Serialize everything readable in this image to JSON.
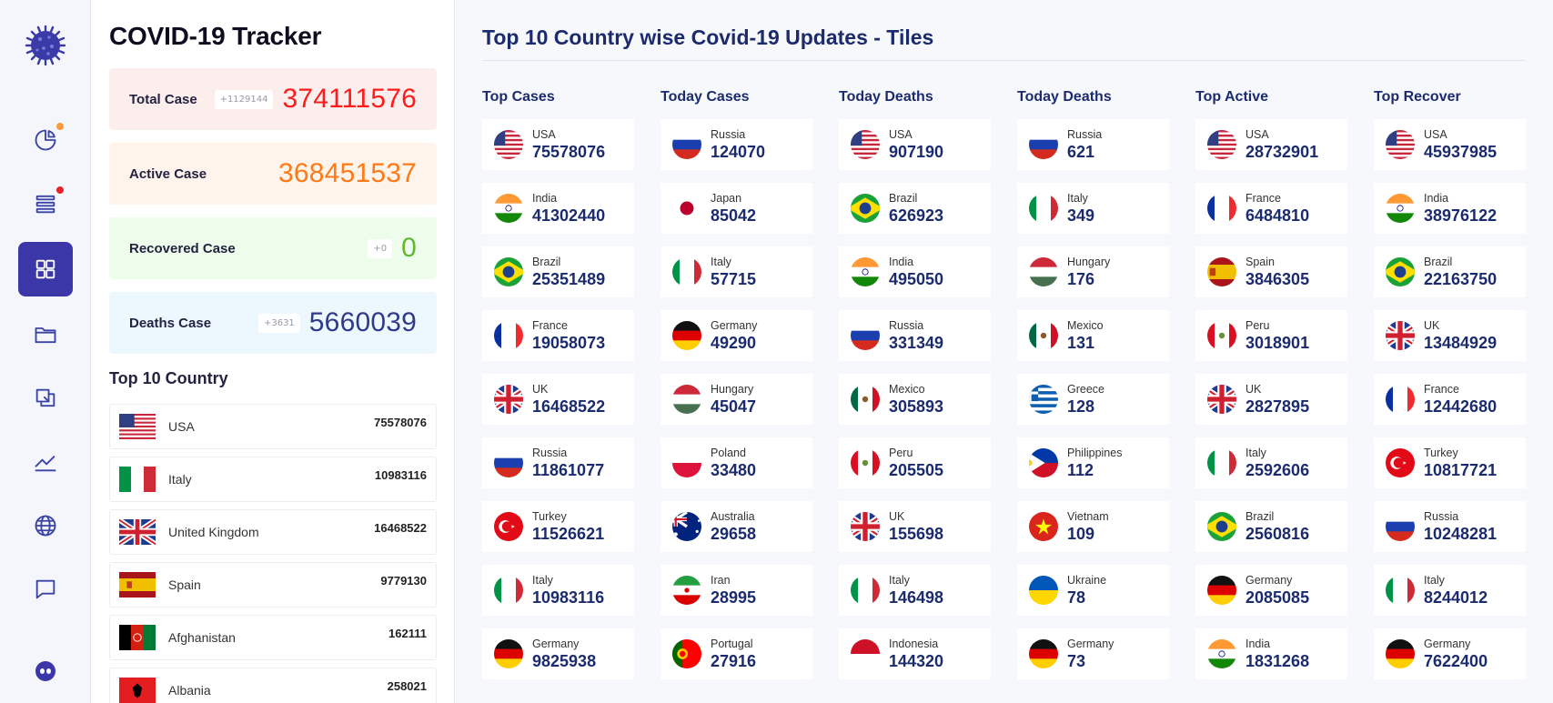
{
  "app": {
    "title": "COVID-19 Tracker"
  },
  "sidebar": {
    "icons": [
      "pie-chart-icon",
      "list-icon",
      "dashboard-grid-icon",
      "folder-icon",
      "copy-icon",
      "trend-chart-icon",
      "globe-icon",
      "message-icon"
    ],
    "active_index": 2
  },
  "stats": [
    {
      "label": "Total Case",
      "delta": "+1129144",
      "value": "374111576",
      "color": "#ff1b1b",
      "bg": "#fdeeee"
    },
    {
      "label": "Active Case",
      "delta": "",
      "value": "368451537",
      "color": "#ff7a16",
      "bg": "#fff4ec"
    },
    {
      "label": "Recovered Case",
      "delta": "+0",
      "value": "0",
      "color": "#5fb832",
      "bg": "#eefceb"
    },
    {
      "label": "Deaths Case",
      "delta": "+3631",
      "value": "5660039",
      "color": "#2f3a8a",
      "bg": "#ecf8fe"
    }
  ],
  "top_country": {
    "title": "Top 10 Country",
    "rows": [
      {
        "flag": "usa",
        "name": "USA",
        "value": "75578076"
      },
      {
        "flag": "italy",
        "name": "Italy",
        "value": "10983116"
      },
      {
        "flag": "uk",
        "name": "United Kingdom",
        "value": "16468522"
      },
      {
        "flag": "spain",
        "name": "Spain",
        "value": "9779130"
      },
      {
        "flag": "afghanistan",
        "name": "Afghanistan",
        "value": "162111"
      },
      {
        "flag": "albania",
        "name": "Albania",
        "value": "258021"
      }
    ]
  },
  "main": {
    "title": "Top 10 Country wise Covid-19 Updates - Tiles",
    "columns": [
      {
        "title": "Top Cases",
        "tiles": [
          {
            "flag": "usa",
            "name": "USA",
            "value": "75578076"
          },
          {
            "flag": "india",
            "name": "India",
            "value": "41302440"
          },
          {
            "flag": "brazil",
            "name": "Brazil",
            "value": "25351489"
          },
          {
            "flag": "france",
            "name": "France",
            "value": "19058073"
          },
          {
            "flag": "uk",
            "name": "UK",
            "value": "16468522"
          },
          {
            "flag": "russia",
            "name": "Russia",
            "value": "11861077"
          },
          {
            "flag": "turkey",
            "name": "Turkey",
            "value": "11526621"
          },
          {
            "flag": "italy",
            "name": "Italy",
            "value": "10983116"
          },
          {
            "flag": "germany",
            "name": "Germany",
            "value": "9825938"
          }
        ]
      },
      {
        "title": "Today Cases",
        "tiles": [
          {
            "flag": "russia",
            "name": "Russia",
            "value": "124070"
          },
          {
            "flag": "japan",
            "name": "Japan",
            "value": "85042"
          },
          {
            "flag": "italy",
            "name": "Italy",
            "value": "57715"
          },
          {
            "flag": "germany",
            "name": "Germany",
            "value": "49290"
          },
          {
            "flag": "hungary",
            "name": "Hungary",
            "value": "45047"
          },
          {
            "flag": "poland",
            "name": "Poland",
            "value": "33480"
          },
          {
            "flag": "australia",
            "name": "Australia",
            "value": "29658"
          },
          {
            "flag": "iran",
            "name": "Iran",
            "value": "28995"
          },
          {
            "flag": "portugal",
            "name": "Portugal",
            "value": "27916"
          }
        ]
      },
      {
        "title": "Today Deaths",
        "tiles": [
          {
            "flag": "usa",
            "name": "USA",
            "value": "907190"
          },
          {
            "flag": "brazil",
            "name": "Brazil",
            "value": "626923"
          },
          {
            "flag": "india",
            "name": "India",
            "value": "495050"
          },
          {
            "flag": "russia",
            "name": "Russia",
            "value": "331349"
          },
          {
            "flag": "mexico",
            "name": "Mexico",
            "value": "305893"
          },
          {
            "flag": "peru",
            "name": "Peru",
            "value": "205505"
          },
          {
            "flag": "uk",
            "name": "UK",
            "value": "155698"
          },
          {
            "flag": "italy",
            "name": "Italy",
            "value": "146498"
          },
          {
            "flag": "indonesia",
            "name": "Indonesia",
            "value": "144320"
          }
        ]
      },
      {
        "title": "Today Deaths",
        "tiles": [
          {
            "flag": "russia",
            "name": "Russia",
            "value": "621"
          },
          {
            "flag": "italy",
            "name": "Italy",
            "value": "349"
          },
          {
            "flag": "hungary",
            "name": "Hungary",
            "value": "176"
          },
          {
            "flag": "mexico",
            "name": "Mexico",
            "value": "131"
          },
          {
            "flag": "greece",
            "name": "Greece",
            "value": "128"
          },
          {
            "flag": "philippines",
            "name": "Philippines",
            "value": "112"
          },
          {
            "flag": "vietnam",
            "name": "Vietnam",
            "value": "109"
          },
          {
            "flag": "ukraine",
            "name": "Ukraine",
            "value": "78"
          },
          {
            "flag": "germany",
            "name": "Germany",
            "value": "73"
          }
        ]
      },
      {
        "title": "Top Active",
        "tiles": [
          {
            "flag": "usa",
            "name": "USA",
            "value": "28732901"
          },
          {
            "flag": "france",
            "name": "France",
            "value": "6484810"
          },
          {
            "flag": "spain",
            "name": "Spain",
            "value": "3846305"
          },
          {
            "flag": "peru",
            "name": "Peru",
            "value": "3018901"
          },
          {
            "flag": "uk",
            "name": "UK",
            "value": "2827895"
          },
          {
            "flag": "italy",
            "name": "Italy",
            "value": "2592606"
          },
          {
            "flag": "brazil",
            "name": "Brazil",
            "value": "2560816"
          },
          {
            "flag": "germany",
            "name": "Germany",
            "value": "2085085"
          },
          {
            "flag": "india",
            "name": "India",
            "value": "1831268"
          }
        ]
      },
      {
        "title": "Top Recover",
        "tiles": [
          {
            "flag": "usa",
            "name": "USA",
            "value": "45937985"
          },
          {
            "flag": "india",
            "name": "India",
            "value": "38976122"
          },
          {
            "flag": "brazil",
            "name": "Brazil",
            "value": "22163750"
          },
          {
            "flag": "uk",
            "name": "UK",
            "value": "13484929"
          },
          {
            "flag": "france",
            "name": "France",
            "value": "12442680"
          },
          {
            "flag": "turkey",
            "name": "Turkey",
            "value": "10817721"
          },
          {
            "flag": "russia",
            "name": "Russia",
            "value": "10248281"
          },
          {
            "flag": "italy",
            "name": "Italy",
            "value": "8244012"
          },
          {
            "flag": "germany",
            "name": "Germany",
            "value": "7622400"
          }
        ]
      }
    ]
  }
}
